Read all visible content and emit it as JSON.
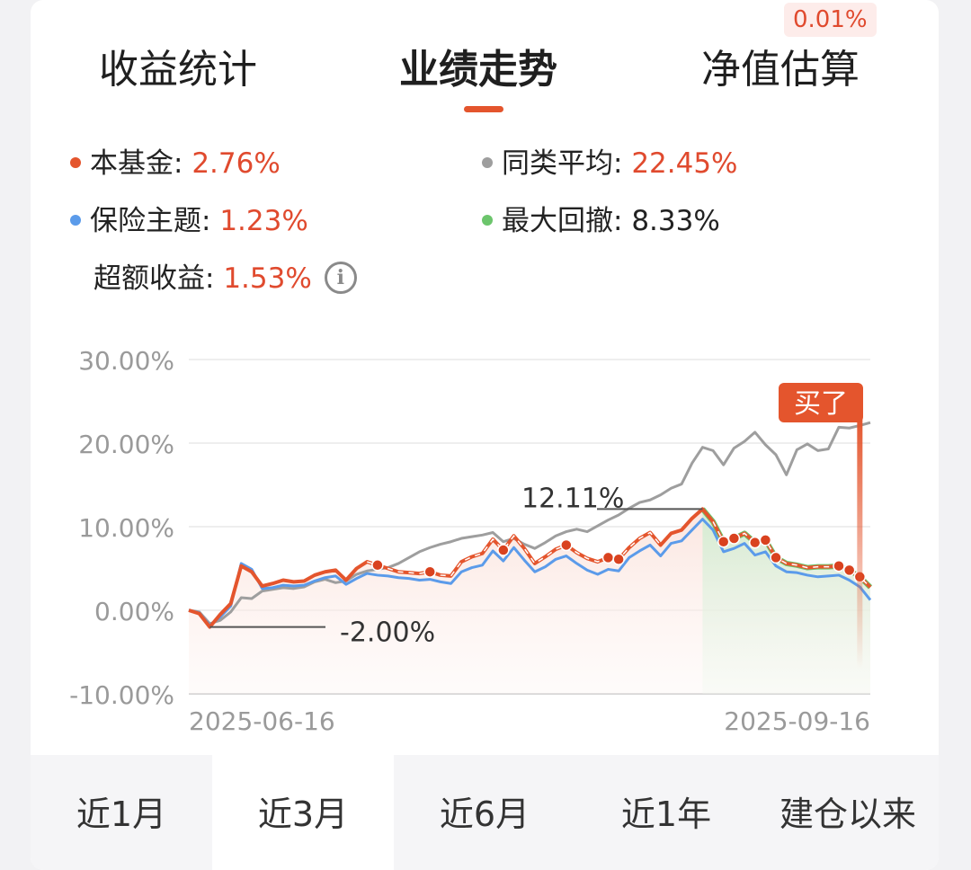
{
  "badge": "0.01%",
  "tabs": [
    {
      "label": "收益统计",
      "active": false
    },
    {
      "label": "业绩走势",
      "active": true
    },
    {
      "label": "净值估算",
      "active": false
    }
  ],
  "legend": {
    "fund": {
      "label": "本基金: ",
      "value": "2.76%",
      "color": "#e4552d"
    },
    "peer": {
      "label": "同类平均: ",
      "value": "22.45%",
      "color": "#9e9e9e"
    },
    "index": {
      "label": "保险主题: ",
      "value": "1.23%",
      "color": "#5b9bea"
    },
    "drawdown": {
      "label": "最大回撤: ",
      "value": "8.33%",
      "color": "#6cc56c"
    },
    "excess": {
      "label": "超额收益: ",
      "value": "1.53%"
    }
  },
  "chart_data": {
    "type": "line",
    "y_ticks": [
      "30.00%",
      "20.00%",
      "10.00%",
      "0.00%",
      "-10.00%"
    ],
    "ylim": [
      -10,
      30
    ],
    "x_labels": [
      "2025-06-16",
      "2025-09-16"
    ],
    "annotations": {
      "max": "12.11%",
      "min": "-2.00%",
      "buy": "买了"
    },
    "series": [
      {
        "name": "本基金",
        "color": "#e4552d",
        "values": [
          0,
          -0.4,
          -2,
          -0.5,
          0.8,
          5.3,
          4.6,
          2.9,
          3.2,
          3.6,
          3.4,
          3.5,
          4.2,
          4.6,
          4.8,
          3.6,
          5.0,
          5.8,
          5.4,
          5.0,
          4.6,
          4.5,
          4.4,
          4.6,
          4.2,
          4.1,
          5.8,
          6.4,
          6.8,
          8.5,
          7.2,
          8.9,
          7.4,
          5.6,
          6.4,
          7.3,
          7.8,
          6.9,
          6.2,
          5.8,
          6.3,
          6.1,
          7.5,
          8.6,
          9.3,
          7.8,
          9.2,
          9.6,
          11.0,
          12.11,
          10.6,
          8.2,
          8.6,
          9.2,
          8.1,
          8.4,
          6.3,
          5.6,
          5.4,
          5.1,
          5.2,
          5.2,
          5.3,
          4.8,
          4.0,
          2.76
        ]
      },
      {
        "name": "保险主题",
        "color": "#5b9bea",
        "values": [
          0,
          -0.3,
          -1.8,
          -0.8,
          0.5,
          5.6,
          4.9,
          2.6,
          2.7,
          3.0,
          2.9,
          3.0,
          3.5,
          3.9,
          4.1,
          3.1,
          3.8,
          4.4,
          4.2,
          4.1,
          3.9,
          3.8,
          3.6,
          3.7,
          3.4,
          3.2,
          4.6,
          5.1,
          5.4,
          7.1,
          5.9,
          7.5,
          6.0,
          4.6,
          5.2,
          6.1,
          6.5,
          5.6,
          4.8,
          4.3,
          4.9,
          4.7,
          6.3,
          7.1,
          7.8,
          6.5,
          8.0,
          8.3,
          9.6,
          10.9,
          9.6,
          7.0,
          7.4,
          8.0,
          6.6,
          7.0,
          5.3,
          4.6,
          4.5,
          4.2,
          4.0,
          4.1,
          4.2,
          3.6,
          2.8,
          1.23
        ]
      },
      {
        "name": "同类平均",
        "color": "#9e9e9e",
        "values": [
          0,
          -0.2,
          -1.6,
          -1.2,
          -0.2,
          1.5,
          1.4,
          2.3,
          2.5,
          2.7,
          2.6,
          2.8,
          3.4,
          3.7,
          3.3,
          3.5,
          4.3,
          4.7,
          4.9,
          5.1,
          5.6,
          6.3,
          7.0,
          7.5,
          7.9,
          8.2,
          8.6,
          8.8,
          9.0,
          9.3,
          8.2,
          8.6,
          7.9,
          7.4,
          8.1,
          8.9,
          9.4,
          9.7,
          9.4,
          10.1,
          10.8,
          11.4,
          12.2,
          12.9,
          13.2,
          13.8,
          14.6,
          15.1,
          17.6,
          19.5,
          19.1,
          17.4,
          19.4,
          20.2,
          21.3,
          19.8,
          18.6,
          16.2,
          19.2,
          19.9,
          19.1,
          19.3,
          21.9,
          21.8,
          22.1,
          22.45
        ]
      }
    ]
  },
  "periods": [
    {
      "label": "近1月",
      "active": false
    },
    {
      "label": "近3月",
      "active": true
    },
    {
      "label": "近6月",
      "active": false
    },
    {
      "label": "近1年",
      "active": false
    },
    {
      "label": "建仓以来",
      "active": false
    }
  ]
}
